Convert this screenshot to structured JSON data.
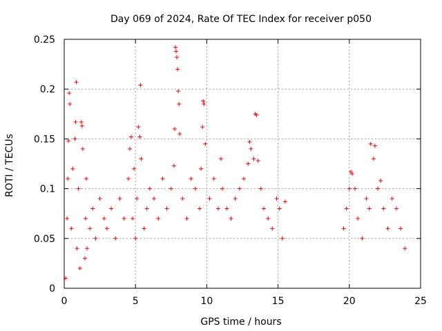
{
  "chart_data": {
    "type": "scatter",
    "title": "Day 069 of 2024, Rate Of TEC Index for receiver p050",
    "xlabel": "GPS time / hours",
    "ylabel": "ROTI / TECUs",
    "xlim": [
      0,
      25
    ],
    "ylim": [
      0,
      0.25
    ],
    "x_ticks": [
      0,
      5,
      10,
      15,
      20,
      25
    ],
    "x_tick_labels": [
      "0",
      "5",
      "10",
      "15",
      "20",
      "25"
    ],
    "y_ticks": [
      0,
      0.05,
      0.1,
      0.15,
      0.2,
      0.25
    ],
    "y_tick_labels": [
      "0",
      "0.05",
      "0.1",
      "0.15",
      "0.2",
      "0.25"
    ],
    "grid": true,
    "marker": "+",
    "colors": {
      "series": "#ff0000",
      "grid": "#a0a0a0",
      "axis": "#000000"
    },
    "series": [
      {
        "name": "ROTI",
        "x": [
          0.1,
          0.2,
          0.25,
          0.3,
          0.35,
          0.4,
          0.5,
          0.6,
          0.75,
          0.8,
          0.85,
          0.9,
          1.0,
          1.1,
          1.2,
          1.25,
          1.3,
          1.45,
          1.5,
          1.55,
          1.6,
          1.8,
          2.0,
          2.2,
          2.5,
          2.8,
          3.0,
          3.3,
          3.6,
          3.9,
          4.2,
          4.5,
          4.6,
          4.7,
          4.8,
          4.9,
          5.0,
          5.1,
          5.2,
          5.3,
          5.35,
          5.4,
          5.6,
          5.8,
          6.0,
          6.3,
          6.6,
          6.9,
          7.2,
          7.5,
          7.7,
          7.75,
          7.8,
          7.85,
          7.9,
          7.95,
          8.0,
          8.05,
          8.1,
          8.3,
          8.6,
          8.9,
          9.2,
          9.5,
          9.6,
          9.7,
          9.75,
          9.8,
          9.9,
          10.2,
          10.5,
          10.8,
          11.0,
          11.1,
          11.4,
          11.7,
          12.0,
          12.3,
          12.6,
          12.9,
          13.0,
          13.1,
          13.3,
          13.4,
          13.5,
          13.6,
          13.8,
          14.0,
          14.3,
          14.6,
          14.9,
          15.1,
          15.3,
          15.5,
          19.6,
          19.8,
          20.0,
          20.1,
          20.2,
          20.4,
          20.6,
          20.9,
          21.2,
          21.4,
          21.5,
          21.7,
          21.8,
          22.0,
          22.2,
          22.4,
          22.7,
          23.0,
          23.3,
          23.6,
          23.9
        ],
        "y": [
          0.01,
          0.07,
          0.11,
          0.148,
          0.196,
          0.185,
          0.06,
          0.12,
          0.15,
          0.167,
          0.207,
          0.04,
          0.1,
          0.02,
          0.167,
          0.163,
          0.14,
          0.03,
          0.07,
          0.11,
          0.04,
          0.06,
          0.08,
          0.05,
          0.09,
          0.07,
          0.06,
          0.08,
          0.05,
          0.09,
          0.07,
          0.11,
          0.14,
          0.152,
          0.07,
          0.12,
          0.05,
          0.09,
          0.162,
          0.152,
          0.204,
          0.13,
          0.06,
          0.08,
          0.1,
          0.09,
          0.07,
          0.11,
          0.08,
          0.1,
          0.123,
          0.16,
          0.242,
          0.238,
          0.232,
          0.22,
          0.198,
          0.185,
          0.155,
          0.09,
          0.07,
          0.11,
          0.1,
          0.08,
          0.12,
          0.162,
          0.188,
          0.185,
          0.145,
          0.09,
          0.11,
          0.08,
          0.13,
          0.1,
          0.08,
          0.07,
          0.09,
          0.1,
          0.11,
          0.125,
          0.147,
          0.14,
          0.13,
          0.175,
          0.174,
          0.128,
          0.1,
          0.08,
          0.07,
          0.06,
          0.09,
          0.08,
          0.05,
          0.087,
          0.06,
          0.08,
          0.1,
          0.117,
          0.115,
          0.1,
          0.07,
          0.05,
          0.09,
          0.08,
          0.145,
          0.13,
          0.143,
          0.1,
          0.108,
          0.08,
          0.06,
          0.09,
          0.08,
          0.06,
          0.04
        ]
      }
    ]
  }
}
